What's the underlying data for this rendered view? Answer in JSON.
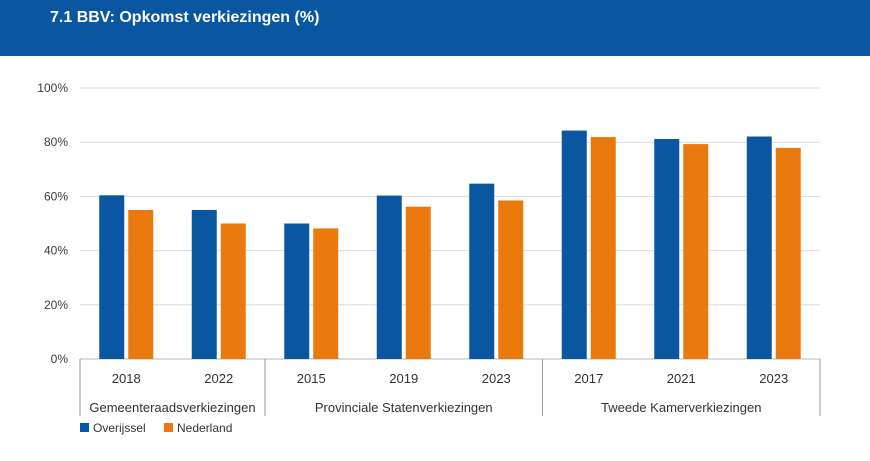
{
  "header": {
    "title": "7.1 BBV: Opkomst verkiezingen (%)"
  },
  "chart_data": {
    "type": "bar",
    "categories": [
      "2018",
      "2022",
      "2015",
      "2019",
      "2023",
      "2017",
      "2021",
      "2023"
    ],
    "groups": [
      {
        "label": "Gemeenteraadsverkiezingen",
        "count": 2
      },
      {
        "label": "Provinciale Statenverkiezingen",
        "count": 3
      },
      {
        "label": "Tweede Kamerverkiezingen",
        "count": 3
      }
    ],
    "series": [
      {
        "name": "Overijssel",
        "color": "#0a56a0",
        "values": [
          60.4,
          55.0,
          50.0,
          60.3,
          64.7,
          84.3,
          81.2,
          82.1
        ]
      },
      {
        "name": "Nederland",
        "color": "#ea7a0e",
        "values": [
          55.0,
          50.0,
          48.2,
          56.2,
          58.5,
          81.9,
          79.3,
          77.9
        ]
      }
    ],
    "yticks": [
      "0%",
      "20%",
      "40%",
      "60%",
      "80%",
      "100%"
    ],
    "ylim": [
      0,
      100
    ],
    "grid": true,
    "legend_position": "bottom-left"
  }
}
